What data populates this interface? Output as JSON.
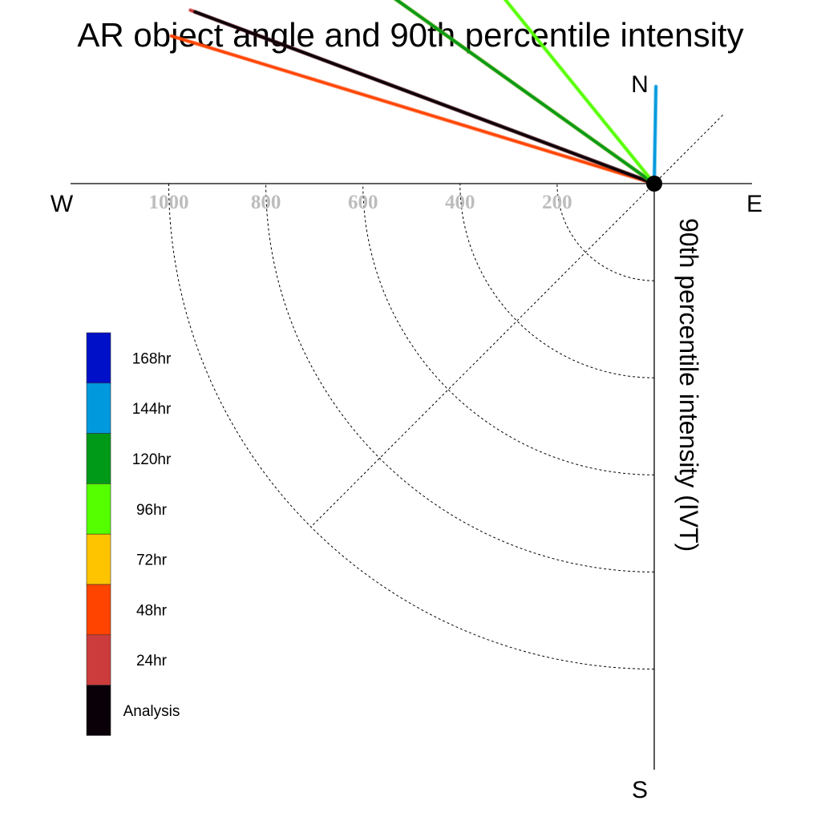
{
  "chart_data": {
    "type": "polar-vector",
    "title": "AR object angle and 90th percentile intensity",
    "ylabel": "90th percentile intensity (IVT)",
    "compass": {
      "north": "N",
      "south": "S",
      "east": "E",
      "west": "W"
    },
    "radial_ticks": [
      "200",
      "400",
      "600",
      "800",
      "1000"
    ],
    "radial_tick_values": [
      200,
      400,
      600,
      800,
      1000
    ],
    "rlim": [
      0,
      1200
    ],
    "legend": {
      "position": "lower-left",
      "entries": [
        {
          "label": "168hr",
          "color": "#0010c8"
        },
        {
          "label": "144hr",
          "color": "#0099dd"
        },
        {
          "label": "120hr",
          "color": "#009a18"
        },
        {
          "label": "96hr",
          "color": "#55ff00"
        },
        {
          "label": "72hr",
          "color": "#ffc400"
        },
        {
          "label": "48hr",
          "color": "#ff4400"
        },
        {
          "label": "24hr",
          "color": "#cc3c3c"
        },
        {
          "label": "Analysis",
          "color": "#0a0008"
        }
      ]
    },
    "series": [
      {
        "name": "144hr",
        "angle_deg": 1,
        "intensity": 200,
        "color": "#0099dd"
      },
      {
        "name": "48hr",
        "angle_deg": 287,
        "intensity": 1040,
        "color": "#ff4400"
      },
      {
        "name": "24hr",
        "angle_deg": 290.5,
        "intensity": 1020,
        "color": "#cc3c3c"
      },
      {
        "name": "Analysis",
        "angle_deg": 290.5,
        "intensity": 1010,
        "color": "#0a0008"
      },
      {
        "name": "72hr",
        "angle_deg": 305.5,
        "intensity": 1000,
        "color": "#ffc400"
      },
      {
        "name": "120hr",
        "angle_deg": 305.5,
        "intensity": 1015,
        "color": "#009a18"
      },
      {
        "name": "96hr",
        "angle_deg": 321,
        "intensity": 935,
        "color": "#55ff00"
      }
    ]
  }
}
